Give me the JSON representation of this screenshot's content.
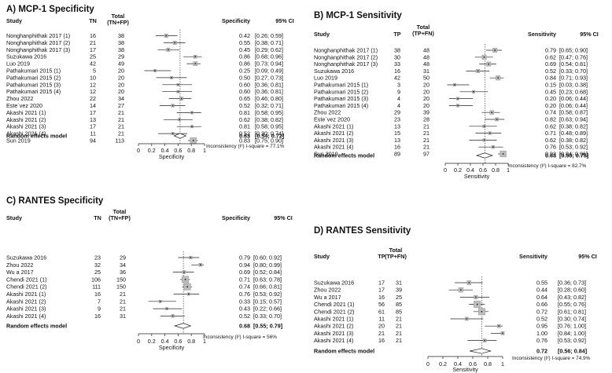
{
  "chart_data": [
    {
      "type": "forest",
      "id": "A",
      "title": "A) MCP-1 Specificity",
      "columns": {
        "study": "Study",
        "count": "TN",
        "total_line1": "Total",
        "total_line2": "(TN+FP)",
        "estimate": "Specificity",
        "ci": "95% CI"
      },
      "studies": [
        {
          "label": "Nonghanphithak 2017 (1)",
          "count": "16",
          "total": "38",
          "estimate": 0.42,
          "ci_low": 0.26,
          "ci_high": 0.59,
          "est_text": "0.42",
          "ci_text": "[0.26; 0.59]"
        },
        {
          "label": "Nonghanphithak 2017 (2)",
          "count": "21",
          "total": "38",
          "estimate": 0.55,
          "ci_low": 0.38,
          "ci_high": 0.71,
          "est_text": "0.55",
          "ci_text": "[0.38; 0.71]"
        },
        {
          "label": "Nonghanphithak 2017 (3)",
          "count": "17",
          "total": "38",
          "estimate": 0.45,
          "ci_low": 0.29,
          "ci_high": 0.62,
          "est_text": "0.45",
          "ci_text": "[0.29; 0.62]"
        },
        {
          "label": "Suzukawa 2016",
          "count": "25",
          "total": "29",
          "estimate": 0.86,
          "ci_low": 0.68,
          "ci_high": 0.96,
          "est_text": "0.86",
          "ci_text": "[0.68; 0.96]"
        },
        {
          "label": "Luo 2019",
          "count": "42",
          "total": "49",
          "estimate": 0.86,
          "ci_low": 0.73,
          "ci_high": 0.94,
          "est_text": "0.86",
          "ci_text": "[0.73; 0.94]"
        },
        {
          "label": "Pathakumari  2015 (1)",
          "count": "5",
          "total": "20",
          "estimate": 0.25,
          "ci_low": 0.09,
          "ci_high": 0.49,
          "est_text": "0.25",
          "ci_text": "[0.09; 0.49]"
        },
        {
          "label": "Pathakumari  2015 (2)",
          "count": "10",
          "total": "20",
          "estimate": 0.5,
          "ci_low": 0.27,
          "ci_high": 0.73,
          "est_text": "0.50",
          "ci_text": "[0.27; 0.73]"
        },
        {
          "label": "Pathakumari  2015 (3)",
          "count": "12",
          "total": "20",
          "estimate": 0.6,
          "ci_low": 0.36,
          "ci_high": 0.81,
          "est_text": "0.60",
          "ci_text": "[0.36; 0.81]"
        },
        {
          "label": "Pathakumari  2015 (4)",
          "count": "12",
          "total": "20",
          "estimate": 0.6,
          "ci_low": 0.36,
          "ci_high": 0.81,
          "est_text": "0.60",
          "ci_text": "[0.36; 0.81]"
        },
        {
          "label": "Zhou 2022",
          "count": "22",
          "total": "34",
          "estimate": 0.65,
          "ci_low": 0.46,
          "ci_high": 0.8,
          "est_text": "0.65",
          "ci_text": "[0.46; 0.80]"
        },
        {
          "label": "Este´vez 2020",
          "count": "14",
          "total": "27",
          "estimate": 0.52,
          "ci_low": 0.32,
          "ci_high": 0.71,
          "est_text": "0.52",
          "ci_text": "[0.32; 0.71]"
        },
        {
          "label": "Akashi  2021 (1)",
          "count": "17",
          "total": "21",
          "estimate": 0.81,
          "ci_low": 0.58,
          "ci_high": 0.95,
          "est_text": "0.81",
          "ci_text": "[0.58; 0.95]"
        },
        {
          "label": "Akashi  2021 (2)",
          "count": "13",
          "total": "21",
          "estimate": 0.62,
          "ci_low": 0.38,
          "ci_high": 0.82,
          "est_text": "0.62",
          "ci_text": "[0.38; 0.82]"
        },
        {
          "label": "Akashi  2021 (3)",
          "count": "17",
          "total": "21",
          "estimate": 0.81,
          "ci_low": 0.58,
          "ci_high": 0.95,
          "est_text": "0.81",
          "ci_text": "[0.58; 0.95]"
        },
        {
          "label": "Akashi  2021 (4)",
          "count": "11",
          "total": "21",
          "estimate": 0.52,
          "ci_low": 0.3,
          "ci_high": 0.74,
          "est_text": "0.52",
          "ci_text": "[0.30; 0.74]"
        },
        {
          "label": "Sun 2019",
          "count": "94",
          "total": "113",
          "estimate": 0.83,
          "ci_low": 0.75,
          "ci_high": 0.9,
          "est_text": "0.83",
          "ci_text": "[0.75; 0.90]"
        }
      ],
      "pooled": {
        "label": "Random effects model",
        "estimate": 0.63,
        "ci_low": 0.54,
        "ci_high": 0.72,
        "est_text": "0.63",
        "ci_text": "[0.54; 0.72]"
      },
      "heterogeneity": "Inconsistency (I²) I-square = 77.1%",
      "xlabel": "Specificity",
      "ticks": [
        "0",
        "0.2",
        "0.4",
        "0.6",
        "0.8",
        "1"
      ],
      "xlim": [
        0,
        1
      ]
    },
    {
      "type": "forest",
      "id": "B",
      "title": "B) MCP-1 Sensitivity",
      "columns": {
        "study": "Study",
        "count": "TP",
        "total_line1": "Total",
        "total_line2": "(TP+FN)",
        "estimate": "Sensitivity",
        "ci": "95% CI"
      },
      "studies": [
        {
          "label": "Nonghanphithak 2017 (1)",
          "count": "38",
          "total": "48",
          "estimate": 0.79,
          "ci_low": 0.65,
          "ci_high": 0.9,
          "est_text": "0.79",
          "ci_text": "[0.65; 0.90]"
        },
        {
          "label": "Nonghanphithak 2017 (2)",
          "count": "30",
          "total": "48",
          "estimate": 0.62,
          "ci_low": 0.47,
          "ci_high": 0.76,
          "est_text": "0.62",
          "ci_text": "[0.47; 0.76]"
        },
        {
          "label": "Nonghanphithak 2017 (3)",
          "count": "33",
          "total": "48",
          "estimate": 0.69,
          "ci_low": 0.54,
          "ci_high": 0.81,
          "est_text": "0.69",
          "ci_text": "[0.54; 0.81]"
        },
        {
          "label": "Suzukawa 2016",
          "count": "16",
          "total": "31",
          "estimate": 0.52,
          "ci_low": 0.33,
          "ci_high": 0.7,
          "est_text": "0.52",
          "ci_text": "[0.33; 0.70]"
        },
        {
          "label": "Luo 2019",
          "count": "42",
          "total": "50",
          "estimate": 0.84,
          "ci_low": 0.71,
          "ci_high": 0.93,
          "est_text": "0.84",
          "ci_text": "[0.71; 0.93]"
        },
        {
          "label": "Pathakumari  2015 (1)",
          "count": "3",
          "total": "20",
          "estimate": 0.15,
          "ci_low": 0.03,
          "ci_high": 0.38,
          "est_text": "0.15",
          "ci_text": "[0.03; 0.38]"
        },
        {
          "label": "Pathakumari  2015 (2)",
          "count": "9",
          "total": "20",
          "estimate": 0.45,
          "ci_low": 0.23,
          "ci_high": 0.68,
          "est_text": "0.45",
          "ci_text": "[0.23; 0.68]"
        },
        {
          "label": "Pathakumari  2015 (3)",
          "count": "4",
          "total": "20",
          "estimate": 0.2,
          "ci_low": 0.06,
          "ci_high": 0.44,
          "est_text": "0.20",
          "ci_text": "[0.06; 0.44]"
        },
        {
          "label": "Pathakumari  2015 (4)",
          "count": "4",
          "total": "20",
          "estimate": 0.2,
          "ci_low": 0.06,
          "ci_high": 0.44,
          "est_text": "0.20",
          "ci_text": "[0.06; 0.44]"
        },
        {
          "label": "Zhou 2022",
          "count": "29",
          "total": "39",
          "estimate": 0.74,
          "ci_low": 0.58,
          "ci_high": 0.87,
          "est_text": "0.74",
          "ci_text": "[0.58; 0.87]"
        },
        {
          "label": "Este´vez 2020",
          "count": "23",
          "total": "28",
          "estimate": 0.82,
          "ci_low": 0.63,
          "ci_high": 0.94,
          "est_text": "0.82",
          "ci_text": "[0.63; 0.94]"
        },
        {
          "label": "Akashi  2021 (1)",
          "count": "13",
          "total": "21",
          "estimate": 0.62,
          "ci_low": 0.38,
          "ci_high": 0.82,
          "est_text": "0.62",
          "ci_text": "[0.38; 0.82]"
        },
        {
          "label": "Akashi  2021 (2)",
          "count": "15",
          "total": "21",
          "estimate": 0.71,
          "ci_low": 0.48,
          "ci_high": 0.89,
          "est_text": "0.71",
          "ci_text": "[0.48; 0.89]"
        },
        {
          "label": "Akashi  2021 (3)",
          "count": "13",
          "total": "21",
          "estimate": 0.62,
          "ci_low": 0.38,
          "ci_high": 0.82,
          "est_text": "0.62",
          "ci_text": "[0.38; 0.82]"
        },
        {
          "label": "Akashi  2021 (4)",
          "count": "16",
          "total": "21",
          "estimate": 0.76,
          "ci_low": 0.53,
          "ci_high": 0.92,
          "est_text": "0.76",
          "ci_text": "[0.53; 0.92]"
        },
        {
          "label": "Sun 2019",
          "count": "89",
          "total": "97",
          "estimate": 0.92,
          "ci_low": 0.84,
          "ci_high": 0.96,
          "est_text": "0.92",
          "ci_text": "[0.84; 0.96]"
        }
      ],
      "pooled": {
        "label": "Random effects model",
        "estimate": 0.63,
        "ci_low": 0.5,
        "ci_high": 0.75,
        "est_text": "0.63",
        "ci_text": "[0.50; 0.75]"
      },
      "heterogeneity": "Inconsistency (I²) I-square = 82.7%",
      "xlabel": "Sensitivity",
      "ticks": [
        "0",
        "0.2",
        "0.4",
        "0.6",
        "0.8",
        "1"
      ],
      "xlim": [
        0,
        1
      ]
    },
    {
      "type": "forest",
      "id": "C",
      "title": "C) RANTES Specificity",
      "columns": {
        "study": "Study",
        "count": "TN",
        "total_line1": "Total",
        "total_line2": "(TN+FP)",
        "estimate": "Specificity",
        "ci": "95% CI"
      },
      "studies": [
        {
          "label": "Suzukawa 2016",
          "count": "23",
          "total": "29",
          "estimate": 0.79,
          "ci_low": 0.6,
          "ci_high": 0.92,
          "est_text": "0.79",
          "ci_text": "[0.60; 0.92]"
        },
        {
          "label": "Zhou 2022",
          "count": "32",
          "total": "34",
          "estimate": 0.94,
          "ci_low": 0.8,
          "ci_high": 0.99,
          "est_text": "0.94",
          "ci_text": "[0.80; 0.99]"
        },
        {
          "label": "Wu a 2017",
          "count": "25",
          "total": "36",
          "estimate": 0.69,
          "ci_low": 0.52,
          "ci_high": 0.84,
          "est_text": "0.69",
          "ci_text": "[0.52; 0.84]"
        },
        {
          "label": "Chendi 2021 (1)",
          "count": "106",
          "total": "150",
          "estimate": 0.71,
          "ci_low": 0.63,
          "ci_high": 0.78,
          "est_text": "0.71",
          "ci_text": "[0.63; 0.78]"
        },
        {
          "label": "Chendi 2021 (2)",
          "count": "111",
          "total": "150",
          "estimate": 0.74,
          "ci_low": 0.66,
          "ci_high": 0.81,
          "est_text": "0.74",
          "ci_text": "[0.66; 0.81]"
        },
        {
          "label": "Akashi 2021 (1)",
          "count": "16",
          "total": "21",
          "estimate": 0.76,
          "ci_low": 0.53,
          "ci_high": 0.92,
          "est_text": "0.76",
          "ci_text": "[0.53; 0.92]"
        },
        {
          "label": "Akashi 2021 (2)",
          "count": "7",
          "total": "21",
          "estimate": 0.33,
          "ci_low": 0.15,
          "ci_high": 0.57,
          "est_text": "0.33",
          "ci_text": "[0.15; 0.57]"
        },
        {
          "label": "Akashi 2021 (3)",
          "count": "9",
          "total": "21",
          "estimate": 0.43,
          "ci_low": 0.22,
          "ci_high": 0.66,
          "est_text": "0.43",
          "ci_text": "[0.22; 0.66]"
        },
        {
          "label": "Akashi 2021 (4)",
          "count": "16",
          "total": "31",
          "estimate": 0.52,
          "ci_low": 0.33,
          "ci_high": 0.7,
          "est_text": "0.52",
          "ci_text": "[0.33; 0.70]"
        }
      ],
      "pooled": {
        "label": "Random effects model",
        "estimate": 0.68,
        "ci_low": 0.55,
        "ci_high": 0.79,
        "est_text": "0.68",
        "ci_text": "[0.55; 0.79]"
      },
      "heterogeneity": "Inconsistency (I²) I-square = 56%",
      "xlabel": "Specificity",
      "ticks": [
        "0",
        "0.2",
        "0.4",
        "0.6",
        "0.8",
        "1"
      ],
      "xlim": [
        0,
        1
      ]
    },
    {
      "type": "forest",
      "id": "D",
      "title": "D) RANTES Sensitivity",
      "columns": {
        "study": "Study",
        "count": "TP",
        "total_line1": "Total",
        "total_line2": "(TP+FN)",
        "estimate": "Sensitivity",
        "ci": "95% CI"
      },
      "studies": [
        {
          "label": "Suzukawa 2016",
          "count": "17",
          "total": "31",
          "estimate": 0.55,
          "ci_low": 0.36,
          "ci_high": 0.73,
          "est_text": "0.55",
          "ci_text": "[0.36; 0.73]"
        },
        {
          "label": "Zhou 2022",
          "count": "17",
          "total": "39",
          "estimate": 0.44,
          "ci_low": 0.28,
          "ci_high": 0.6,
          "est_text": "0.44",
          "ci_text": "[0.28; 0.60]"
        },
        {
          "label": "Wu a 2017",
          "count": "16",
          "total": "25",
          "estimate": 0.64,
          "ci_low": 0.43,
          "ci_high": 0.82,
          "est_text": "0.64",
          "ci_text": "[0.43; 0.82]"
        },
        {
          "label": "Chendi 2021 (1)",
          "count": "56",
          "total": "85",
          "estimate": 0.66,
          "ci_low": 0.55,
          "ci_high": 0.76,
          "est_text": "0.66",
          "ci_text": "[0.55; 0.76]"
        },
        {
          "label": "Chendi 2021 (2)",
          "count": "61",
          "total": "85",
          "estimate": 0.72,
          "ci_low": 0.61,
          "ci_high": 0.81,
          "est_text": "0.72",
          "ci_text": "[0.61; 0.81]"
        },
        {
          "label": "Akashi 2021 (1)",
          "count": "11",
          "total": "21",
          "estimate": 0.52,
          "ci_low": 0.3,
          "ci_high": 0.74,
          "est_text": "0.52",
          "ci_text": "[0.30; 0.74]"
        },
        {
          "label": "Akashi 2021 (2)",
          "count": "20",
          "total": "21",
          "estimate": 0.95,
          "ci_low": 0.76,
          "ci_high": 1.0,
          "est_text": "0.95",
          "ci_text": "[0.76; 1.00]"
        },
        {
          "label": "Akashi 2021 (3)",
          "count": "21",
          "total": "21",
          "estimate": 1.0,
          "ci_low": 0.84,
          "ci_high": 1.0,
          "est_text": "1.00",
          "ci_text": "[0.84; 1.00]"
        },
        {
          "label": "Akashi 2021 (4)",
          "count": "16",
          "total": "21",
          "estimate": 0.76,
          "ci_low": 0.53,
          "ci_high": 0.92,
          "est_text": "0.76",
          "ci_text": "[0.53; 0.92]"
        }
      ],
      "pooled": {
        "label": "Random effects model",
        "estimate": 0.72,
        "ci_low": 0.56,
        "ci_high": 0.84,
        "est_text": "0.72",
        "ci_text": "[0.56; 0.84]"
      },
      "heterogeneity": "Inconsistency (I²) I-square = 74.9%",
      "xlabel": "Sensitivity",
      "ticks": [
        "0",
        "0.2",
        "0.4",
        "0.6",
        "0.8",
        "1"
      ],
      "xlim": [
        0,
        1
      ]
    }
  ]
}
